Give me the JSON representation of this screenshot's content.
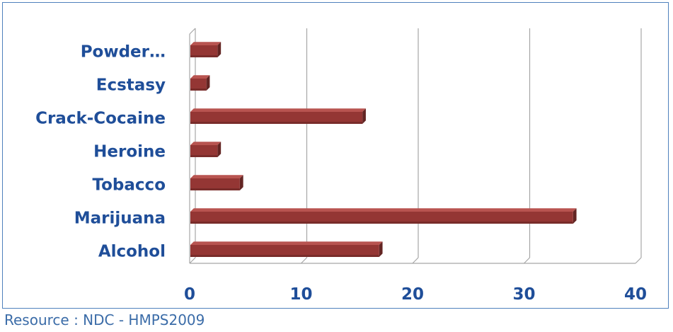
{
  "chart_data": {
    "type": "bar",
    "orientation": "horizontal",
    "style": "3d-clustered",
    "categories": [
      "Alcohol",
      "Marijuana",
      "Tobacco",
      "Heroine",
      "Crack-Cocaine",
      "Ecstasy",
      "Powder…"
    ],
    "values": [
      17,
      34.4,
      4.5,
      2.5,
      15.5,
      1.5,
      2.5
    ],
    "xlim": [
      0,
      40
    ],
    "xticks": [
      "0",
      "10",
      "20",
      "30",
      "40"
    ],
    "grid": true,
    "legend": "none",
    "colors": {
      "bar": "#943634",
      "bar_top": "#b85450",
      "bar_side": "#632523",
      "label": "#1f4e99",
      "gridline": "#a6a6a6",
      "frame": "#4f81bd"
    }
  },
  "source_note": "Resource : NDC - HMPS2009"
}
